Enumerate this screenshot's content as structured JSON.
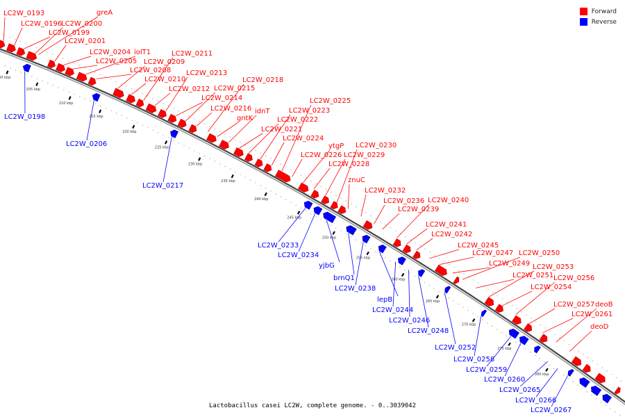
{
  "legend": {
    "forward_label": "Forward",
    "reverse_label": "Reverse",
    "forward_color": "#ff0000",
    "reverse_color": "#0000ff"
  },
  "caption": "Lactobacillus casei LC2W, complete genome. - 0..3039042",
  "ticks": [
    "200 kbp",
    "205 kbp",
    "210 kbp",
    "215 kbp",
    "220 kbp",
    "225 kbp",
    "230 kbp",
    "235 kbp",
    "240 kbp",
    "245 kbp",
    "250 kbp",
    "255 kbp",
    "260 kbp",
    "265 kbp",
    "270 kbp",
    "275 kbp",
    "280 kbp"
  ],
  "forward_genes": [
    "LC2W_0193",
    "LC2W_0196",
    "LC2W_0199",
    "LC2W_0200",
    "greA",
    "LC2W_0201",
    "LC2W_0204",
    "LC2W_0205",
    "iolT1",
    "LC2W_0208",
    "LC2W_0209",
    "LC2W_0210",
    "LC2W_0211",
    "LC2W_0212",
    "LC2W_0213",
    "LC2W_0214",
    "LC2W_0215",
    "LC2W_0216",
    "LC2W_0218",
    "gntK",
    "idnT",
    "LC2W_0221",
    "LC2W_0222",
    "LC2W_0223",
    "LC2W_0224",
    "LC2W_0225",
    "LC2W_0226",
    "ytgP",
    "LC2W_0228",
    "LC2W_0229",
    "LC2W_0230",
    "znuC",
    "LC2W_0232",
    "LC2W_0236",
    "LC2W_0239",
    "LC2W_0240",
    "LC2W_0241",
    "LC2W_0242",
    "LC2W_0245",
    "LC2W_0247",
    "LC2W_0249",
    "LC2W_0250",
    "LC2W_0251",
    "LC2W_0253",
    "LC2W_0254",
    "LC2W_0256",
    "LC2W_0257",
    "LC2W_0261",
    "deoB",
    "deoD"
  ],
  "reverse_genes": [
    "LC2W_0198",
    "LC2W_0206",
    "LC2W_0217",
    "LC2W_0233",
    "LC2W_0234",
    "yjbG",
    "brnQ1",
    "LC2W_0238",
    "lepB",
    "LC2W_0244",
    "LC2W_0246",
    "LC2W_0248",
    "LC2W_0252",
    "LC2W_0258",
    "LC2W_0259",
    "LC2W_0260",
    "LC2W_0265",
    "LC2W_0266",
    "LC2W_0267"
  ]
}
